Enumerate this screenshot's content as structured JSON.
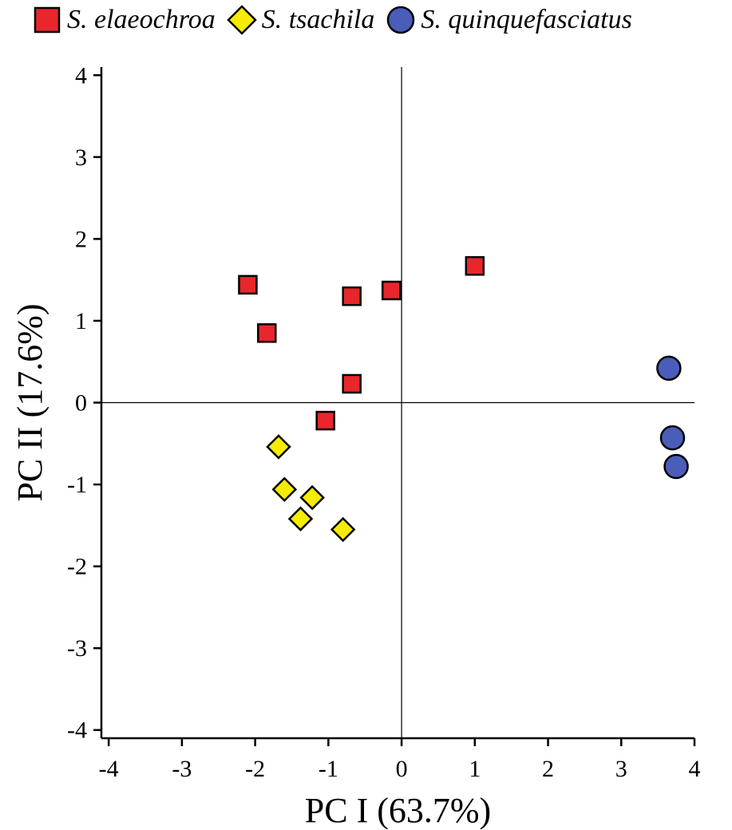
{
  "chart_data": {
    "type": "scatter",
    "xlabel": "PC I (63.7%)",
    "ylabel": "PC II (17.6%)",
    "xlim": [
      -4.1,
      4.0
    ],
    "ylim": [
      -4.1,
      4.1
    ],
    "xticks": [
      -4,
      -3,
      -2,
      -1,
      0,
      1,
      2,
      3,
      4
    ],
    "yticks": [
      -4,
      -3,
      -2,
      -1,
      0,
      1,
      2,
      3,
      4
    ],
    "reference_lines": {
      "x": 0,
      "y": 0
    },
    "grid": false,
    "legend_position": "top",
    "series": [
      {
        "name": "S. elaeochroa",
        "marker": "square",
        "color": "#e8262b",
        "points": [
          {
            "x": -2.1,
            "y": 1.44
          },
          {
            "x": -1.84,
            "y": 0.85
          },
          {
            "x": -0.68,
            "y": 1.3
          },
          {
            "x": -0.14,
            "y": 1.37
          },
          {
            "x": 1.0,
            "y": 1.67
          },
          {
            "x": -0.68,
            "y": 0.23
          },
          {
            "x": -1.04,
            "y": -0.22
          }
        ]
      },
      {
        "name": "S. tsachila",
        "marker": "diamond",
        "color": "#f5ec00",
        "points": [
          {
            "x": -1.68,
            "y": -0.54
          },
          {
            "x": -1.6,
            "y": -1.06
          },
          {
            "x": -1.22,
            "y": -1.16
          },
          {
            "x": -1.38,
            "y": -1.42
          },
          {
            "x": -0.8,
            "y": -1.55
          }
        ]
      },
      {
        "name": "S. quinquefasciatus",
        "marker": "circle",
        "color": "#4a5dba",
        "points": [
          {
            "x": 3.65,
            "y": 0.42
          },
          {
            "x": 3.7,
            "y": -0.43
          },
          {
            "x": 3.75,
            "y": -0.78
          }
        ]
      }
    ]
  }
}
